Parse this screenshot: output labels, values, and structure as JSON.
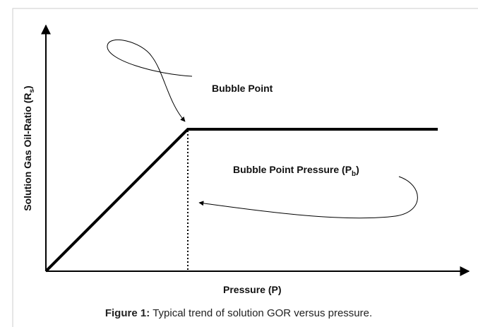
{
  "axes": {
    "y_label": {
      "text": "Solution Gas Oil-Ratio (R",
      "sub": "s",
      "end": ")"
    },
    "x_label": "Pressure (P)"
  },
  "annotations": [
    {
      "text": "Bubble Point"
    },
    {
      "text": "Bubble Point Pressure (P",
      "sub": "b",
      "end": ")"
    }
  ],
  "caption": {
    "label": "Figure 1:",
    "text": "Typical trend of solution GOR versus pressure."
  }
}
